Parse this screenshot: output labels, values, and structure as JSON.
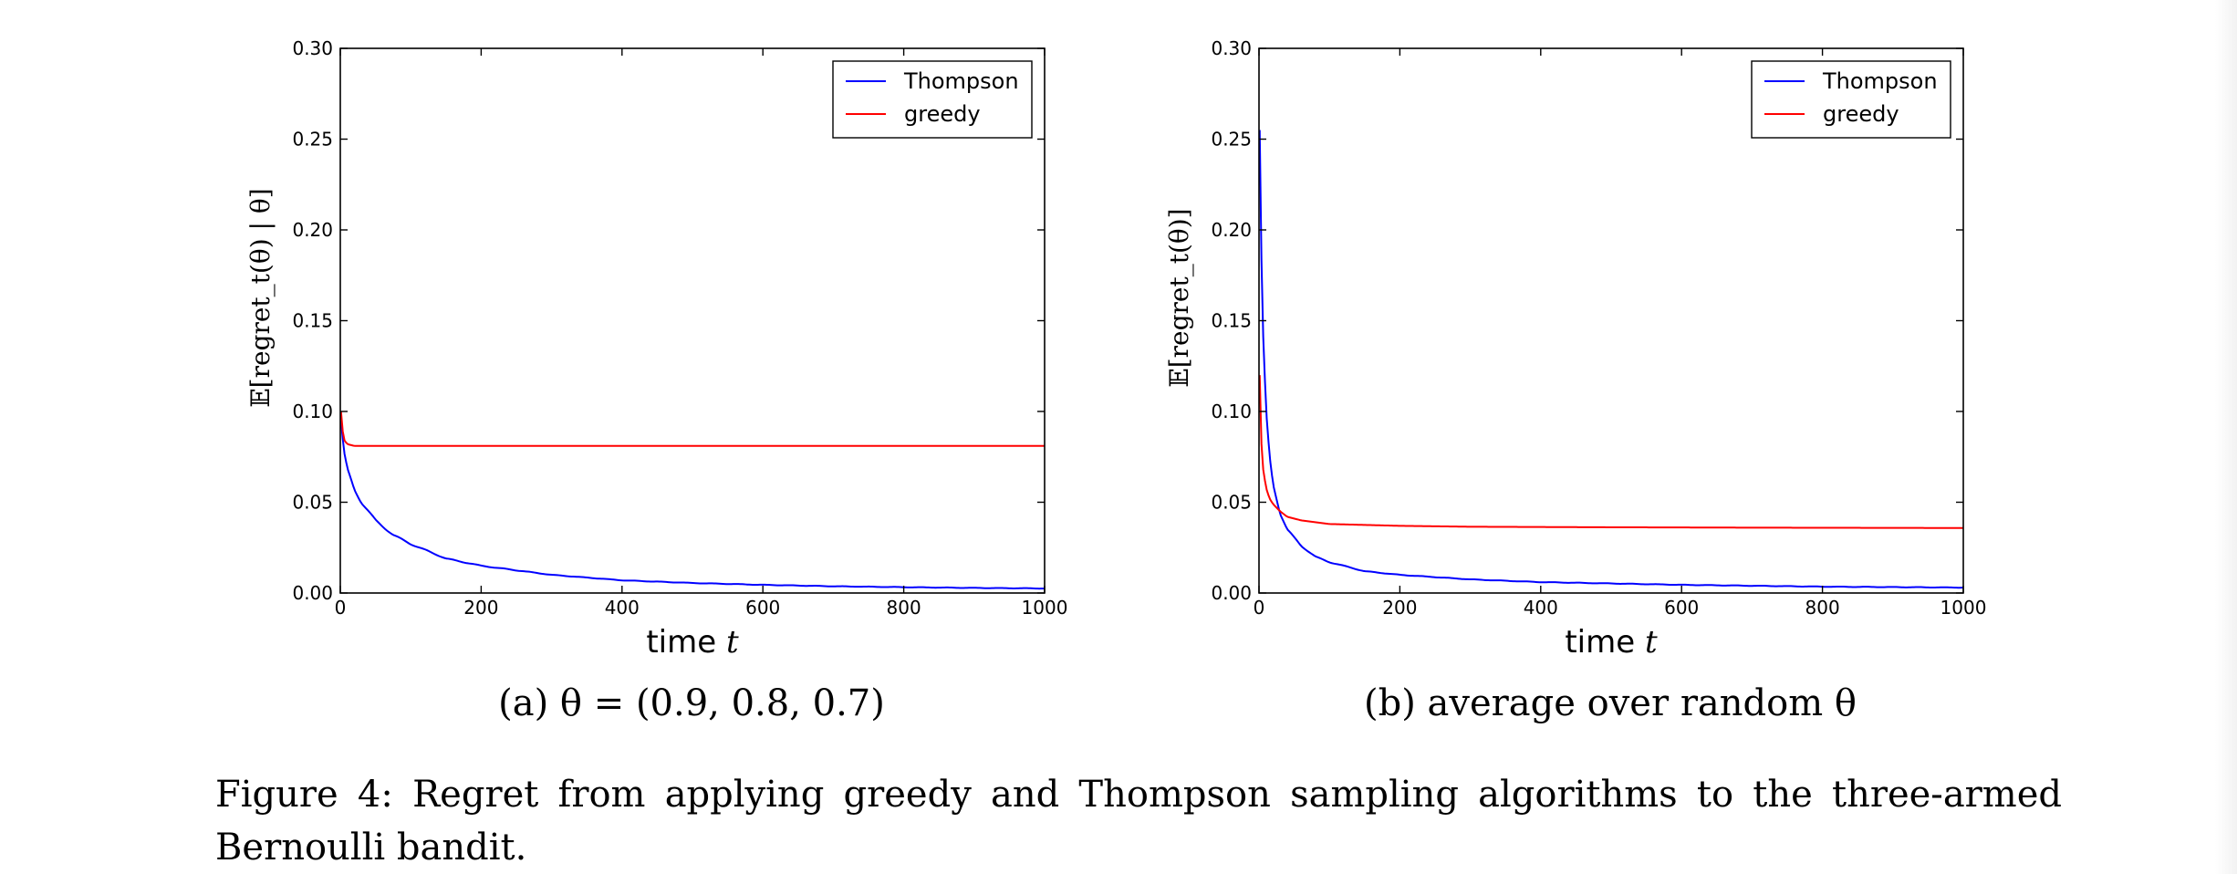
{
  "chart_data": [
    {
      "type": "line",
      "subcaption": "(a) θ = (0.9, 0.8, 0.7)",
      "xlabel": "time t",
      "ylabel": "𝔼[regret_t(θ) | θ]",
      "xlim": [
        0,
        1000
      ],
      "ylim": [
        0,
        0.3
      ],
      "xticks": [
        "0",
        "200",
        "400",
        "600",
        "800",
        "1000"
      ],
      "yticks": [
        "0.00",
        "0.05",
        "0.10",
        "0.15",
        "0.20",
        "0.25",
        "0.30"
      ],
      "legend": "top-right",
      "grid": false,
      "series": [
        {
          "name": "Thompson",
          "color": "#0000ff",
          "x": [
            1,
            5,
            10,
            20,
            30,
            50,
            75,
            100,
            150,
            200,
            300,
            400,
            500,
            600,
            700,
            800,
            900,
            1000
          ],
          "values": [
            0.095,
            0.078,
            0.068,
            0.057,
            0.05,
            0.04,
            0.032,
            0.027,
            0.019,
            0.015,
            0.01,
            0.007,
            0.0055,
            0.0045,
            0.0037,
            0.0032,
            0.0028,
            0.0025
          ]
        },
        {
          "name": "greedy",
          "color": "#ff0000",
          "x": [
            1,
            3,
            6,
            10,
            20,
            50,
            100,
            1000
          ],
          "values": [
            0.1,
            0.09,
            0.084,
            0.082,
            0.081,
            0.081,
            0.081,
            0.081
          ]
        }
      ]
    },
    {
      "type": "line",
      "subcaption": "(b) average over random θ",
      "xlabel": "time t",
      "ylabel": "𝔼[regret_t(θ)]",
      "xlim": [
        0,
        1000
      ],
      "ylim": [
        0,
        0.3
      ],
      "xticks": [
        "0",
        "200",
        "400",
        "600",
        "800",
        "1000"
      ],
      "yticks": [
        "0.00",
        "0.05",
        "0.10",
        "0.15",
        "0.20",
        "0.25",
        "0.30"
      ],
      "legend": "top-right",
      "grid": false,
      "series": [
        {
          "name": "Thompson",
          "color": "#0000ff",
          "x": [
            1,
            2,
            4,
            6,
            10,
            15,
            20,
            30,
            40,
            60,
            80,
            100,
            150,
            200,
            300,
            400,
            600,
            800,
            1000
          ],
          "values": [
            0.255,
            0.22,
            0.17,
            0.14,
            0.1,
            0.075,
            0.06,
            0.044,
            0.035,
            0.026,
            0.02,
            0.017,
            0.012,
            0.01,
            0.0075,
            0.006,
            0.0045,
            0.0035,
            0.003
          ]
        },
        {
          "name": "greedy",
          "color": "#ff0000",
          "x": [
            1,
            3,
            6,
            10,
            15,
            20,
            30,
            40,
            60,
            100,
            150,
            200,
            300,
            500,
            700,
            1000
          ],
          "values": [
            0.12,
            0.085,
            0.068,
            0.058,
            0.052,
            0.049,
            0.045,
            0.042,
            0.04,
            0.038,
            0.0375,
            0.037,
            0.0365,
            0.0362,
            0.036,
            0.0358
          ]
        }
      ]
    }
  ],
  "caption": "Figure 4:  Regret from applying greedy and Thompson sampling algorithms to the three-armed Bernoulli bandit."
}
